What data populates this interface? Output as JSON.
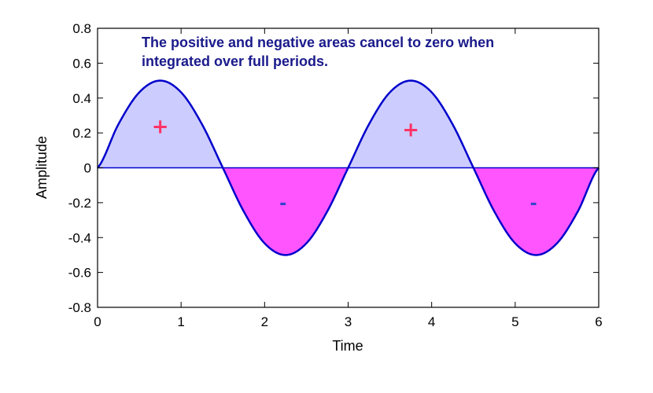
{
  "chart_data": {
    "type": "area",
    "title": "",
    "xlabel": "Time",
    "ylabel": "Amplitude",
    "xlim": [
      0,
      6
    ],
    "ylim": [
      -0.8,
      0.8
    ],
    "x_ticks": [
      "0",
      "1",
      "2",
      "3",
      "4",
      "5",
      "6"
    ],
    "y_ticks": [
      "0.8",
      "0.6",
      "0.4",
      "0.2",
      "0",
      "-0.2",
      "-0.4",
      "-0.6",
      "-0.8"
    ],
    "grid": false,
    "legend": "none",
    "series": [
      {
        "x": [
          0,
          0.25,
          0.5,
          0.75,
          1.0,
          1.25,
          1.5,
          1.75,
          2.0,
          2.25,
          2.5,
          2.75,
          3.0,
          3.25,
          3.5,
          3.75,
          4.0,
          4.25,
          4.5,
          4.75,
          5.0,
          5.25,
          5.5,
          5.75,
          6.0
        ],
        "values": [
          0,
          0.25,
          0.433,
          0.5,
          0.433,
          0.25,
          0,
          -0.25,
          -0.433,
          -0.5,
          -0.433,
          -0.25,
          0,
          0.25,
          0.433,
          0.5,
          0.433,
          0.25,
          0,
          -0.25,
          -0.433,
          -0.5,
          -0.433,
          -0.25,
          0
        ]
      }
    ],
    "annotation": {
      "line1": "The positive and negative areas cancel to zero when",
      "line2": "integrated over full periods."
    },
    "sign_markers": [
      {
        "text": "+",
        "x": 0.75,
        "y": 0.24
      },
      {
        "text": "-",
        "x": 2.22,
        "y": -0.21
      },
      {
        "text": "+",
        "x": 3.75,
        "y": 0.22
      },
      {
        "text": "-",
        "x": 5.22,
        "y": -0.21
      }
    ],
    "colors": {
      "positive_fill": "#ccccff",
      "negative_fill": "#ff55ff",
      "curve": "#0000cc",
      "zero_line": "#0000cc",
      "plus_sign": "#ff3366",
      "minus_sign": "#3344cc",
      "annotation": "#1a1a8c"
    }
  }
}
